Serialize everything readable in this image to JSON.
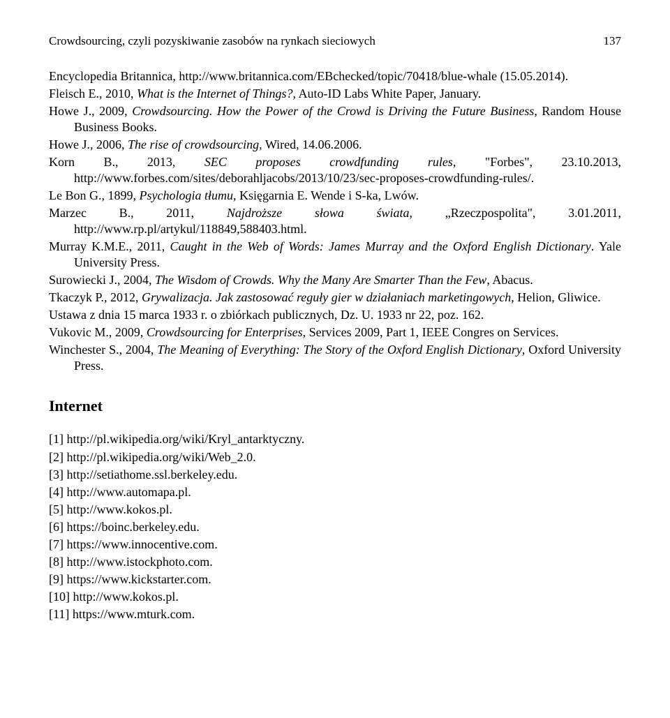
{
  "header": {
    "title": "Crowdsourcing, czyli pozyskiwanie zasobów na rynkach sieciowych",
    "page_number": "137"
  },
  "refs": {
    "r1a": "Encyclopedia Britannica, http://www.britannica.com/EBchecked/topic/70418/blue-whale (15.05.2014).",
    "r2_pre": "Fleisch E., 2010, ",
    "r2_ital": "What is the Internet of Things?",
    "r2_post": ", Auto-ID Labs White Paper, January.",
    "r3_pre": "Howe J., 2009, ",
    "r3_ital": "Crowdsourcing. How the Power of the Crowd is Driving the Future Business",
    "r3_post": ", Random House Business Books.",
    "r4_pre": "Howe J., 2006, ",
    "r4_ital": "The rise of crowdsourcing,",
    "r4_post": " Wired, 14.06.2006.",
    "r5_pre": "Korn B., 2013, ",
    "r5_ital": "SEC proposes crowdfunding rules",
    "r5_post": ", \"Forbes\", 23.10.2013, http://www.forbes.com/sites/deborahljacobs/2013/10/23/sec-proposes-crowdfunding-rules/.",
    "r6_pre": "Le Bon G., 1899, ",
    "r6_ital": "Psychologia tłumu",
    "r6_post": ", Księgarnia E. Wende i S-ka, Lwów.",
    "r7_pre": "Marzec B., 2011, ",
    "r7_ital": "Najdroższe słowa świata,",
    "r7_post": " „Rzeczpospolita\", 3.01.2011, http://www.rp.pl/artykul/118849,588403.html.",
    "r8_pre": "Murray K.M.E., 2011, ",
    "r8_ital": "Caught in the Web of Words: James Murray and the Oxford English Dictionary",
    "r8_post": ". Yale University Press.",
    "r9_pre": "Surowiecki J., 2004, ",
    "r9_ital": "The Wisdom of Crowds. Why the Many Are Smarter Than the Few",
    "r9_post": ", Abacus.",
    "r10_pre": "Tkaczyk P., 2012, ",
    "r10_ital": "Grywalizacja. Jak zastosować reguły gier w działaniach marketingowych",
    "r10_post": ", Helion, Gliwice.",
    "r11": "Ustawa z dnia 15 marca 1933 r. o zbiórkach publicznych, Dz. U. 1933 nr 22, poz. 162.",
    "r12_pre": "Vukovic M., 2009, ",
    "r12_ital": "Crowdsourcing for Enterprises",
    "r12_post": ", Services 2009, Part 1, IEEE Congres on Services.",
    "r13_pre": "Winchester S., 2004, ",
    "r13_ital": "The Meaning of Everything: The Story of the Oxford English Dictionary",
    "r13_post": ", Oxford University Press."
  },
  "section_heading": "Internet",
  "links": {
    "l1": "[1] http://pl.wikipedia.org/wiki/Kryl_antarktyczny.",
    "l2": "[2] http://pl.wikipedia.org/wiki/Web_2.0.",
    "l3": "[3] http://setiathome.ssl.berkeley.edu.",
    "l4": "[4] http://www.automapa.pl.",
    "l5": "[5] http://www.kokos.pl.",
    "l6": "[6] https://boinc.berkeley.edu.",
    "l7": "[7] https://www.innocentive.com.",
    "l8": "[8] http://www.istockphoto.com.",
    "l9": "[9] https://www.kickstarter.com.",
    "l10": "[10] http://www.kokos.pl.",
    "l11": "[11] https://www.mturk.com."
  }
}
